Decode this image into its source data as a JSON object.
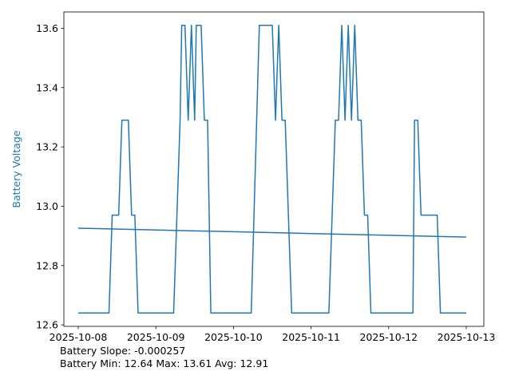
{
  "chart_data": {
    "type": "line",
    "title": "",
    "xlabel": "",
    "ylabel": "Battery Voltage",
    "ylabel_color": "#1f77b4",
    "x_axis": "date",
    "xlim": [
      "2025-10-08",
      "2025-10-13"
    ],
    "ylim": [
      12.595,
      13.655
    ],
    "x_ticks": [
      "2025-10-08",
      "2025-10-09",
      "2025-10-10",
      "2025-10-11",
      "2025-10-12",
      "2025-10-13"
    ],
    "y_ticks": [
      "12.6",
      "12.8",
      "13.0",
      "13.2",
      "13.4",
      "13.6"
    ],
    "grid": false,
    "series": [
      {
        "name": "",
        "color": "#1f77b4",
        "x": [
          "2025-10-08 00:00",
          "2025-10-08 09:30",
          "2025-10-08 10:30",
          "2025-10-08 12:30",
          "2025-10-08 13:30",
          "2025-10-08 15:30",
          "2025-10-08 16:30",
          "2025-10-08 17:30",
          "2025-10-08 18:30",
          "2025-10-09 05:30",
          "2025-10-09 07:30",
          "2025-10-09 08:00",
          "2025-10-09 09:00",
          "2025-10-09 10:00",
          "2025-10-09 11:00",
          "2025-10-09 12:00",
          "2025-10-09 12:30",
          "2025-10-09 14:00",
          "2025-10-09 15:00",
          "2025-10-09 16:00",
          "2025-10-09 17:00",
          "2025-10-09 18:00",
          "2025-10-10 05:30",
          "2025-10-10 08:00",
          "2025-10-10 12:00",
          "2025-10-10 13:00",
          "2025-10-10 14:00",
          "2025-10-10 15:00",
          "2025-10-10 16:00",
          "2025-10-10 18:00",
          "2025-10-11 05:30",
          "2025-10-11 07:30",
          "2025-10-11 08:30",
          "2025-10-11 09:30",
          "2025-10-11 10:30",
          "2025-10-11 11:30",
          "2025-10-11 12:30",
          "2025-10-11 13:30",
          "2025-10-11 14:30",
          "2025-10-11 15:30",
          "2025-10-11 16:30",
          "2025-10-11 17:30",
          "2025-10-11 18:30",
          "2025-10-12 07:30",
          "2025-10-12 08:00",
          "2025-10-12 09:00",
          "2025-10-12 10:00",
          "2025-10-12 15:00",
          "2025-10-12 16:00",
          "2025-10-12 23:59"
        ],
        "y": [
          12.64,
          12.64,
          12.97,
          12.97,
          13.29,
          13.29,
          12.97,
          12.97,
          12.64,
          12.64,
          13.29,
          13.61,
          13.61,
          13.29,
          13.61,
          13.29,
          13.61,
          13.61,
          13.29,
          13.29,
          12.64,
          12.64,
          12.64,
          13.61,
          13.61,
          13.29,
          13.61,
          13.29,
          13.29,
          12.64,
          12.64,
          13.29,
          13.29,
          13.61,
          13.29,
          13.61,
          13.29,
          13.61,
          13.29,
          13.29,
          12.97,
          12.97,
          12.64,
          12.64,
          13.29,
          13.29,
          12.97,
          12.97,
          12.64,
          12.64
        ]
      },
      {
        "name": "",
        "color": "#1f77b4",
        "x": [
          "2025-10-08 00:00",
          "2025-10-12 23:59"
        ],
        "y": [
          12.926,
          12.896
        ]
      }
    ]
  },
  "stats": {
    "slope_line": "Battery Slope: -0.000257",
    "range_line": "Battery Min: 12.64 Max: 13.61 Avg: 12.91"
  }
}
